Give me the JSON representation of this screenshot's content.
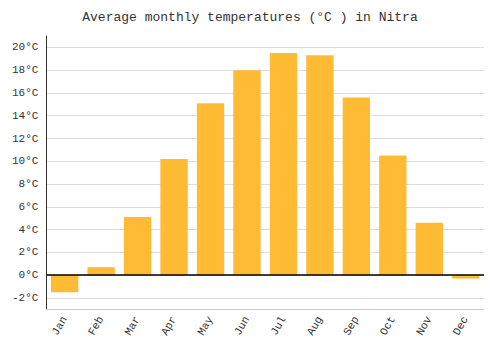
{
  "chart_data": {
    "type": "bar",
    "title": "Average monthly temperatures (°C ) in Nitra",
    "categories": [
      "Jan",
      "Feb",
      "Mar",
      "Apr",
      "May",
      "Jun",
      "Jul",
      "Aug",
      "Sep",
      "Oct",
      "Nov",
      "Dec"
    ],
    "values": [
      -1.5,
      0.7,
      5.1,
      10.2,
      15.1,
      18.0,
      19.5,
      19.3,
      15.6,
      10.5,
      4.6,
      -0.3
    ],
    "color": "#FFBB33",
    "ylim": [
      -3,
      21
    ],
    "yticks": [
      {
        "value": -2,
        "label": "-2°C"
      },
      {
        "value": 0,
        "label": "0°C"
      },
      {
        "value": 2,
        "label": "2°C"
      },
      {
        "value": 4,
        "label": "4°C"
      },
      {
        "value": 6,
        "label": "6°C"
      },
      {
        "value": 8,
        "label": "8°C"
      },
      {
        "value": 10,
        "label": "10°C"
      },
      {
        "value": 12,
        "label": "12°C"
      },
      {
        "value": 14,
        "label": "14°C"
      },
      {
        "value": 16,
        "label": "16°C"
      },
      {
        "value": 18,
        "label": "18°C"
      },
      {
        "value": 20,
        "label": "20°C"
      }
    ],
    "grid": true
  }
}
